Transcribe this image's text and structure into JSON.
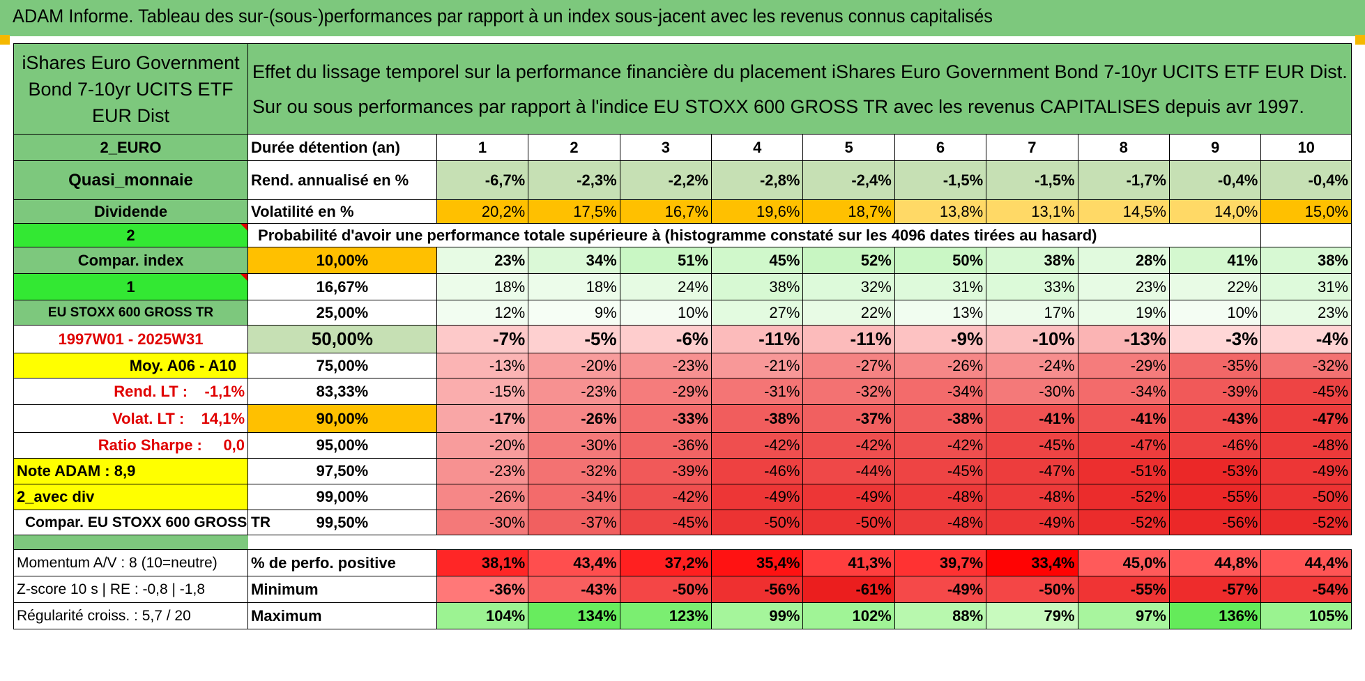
{
  "title": "ADAM Informe. Tableau des sur-(sous-)performances par rapport à un index sous-jacent avec les revenus connus capitalisés",
  "fund_name": "iShares Euro Government Bond 7-10yr UCITS ETF EUR Dist",
  "description_line1": "Effet du lissage temporel sur la performance financière du placement iShares Euro Government Bond 7-10yr UCITS ETF EUR Dist.",
  "description_line2": "Sur ou sous performances par rapport à l'indice EU STOXX 600 GROSS TR avec les revenus CAPITALISES depuis avr 1997.",
  "side": {
    "currency": "2_EURO",
    "category": "Quasi_monnaie",
    "distribution": "Dividende",
    "setting_a": "2",
    "compar_index": "Compar. index",
    "setting_b": "1",
    "index_name": "EU STOXX 600 GROSS TR",
    "period": "1997W01 - 2025W31",
    "moy": "Moy. A06 - A10",
    "rend_lt": "Rend. LT :    -1,1%",
    "volat_lt": "Volat. LT :    14,1%",
    "ratio_sharpe": "Ratio Sharpe :     0,0",
    "note_adam": "Note ADAM : 8,9",
    "avec_div": "2_avec div",
    "compar_full": "Compar. EU STOXX 600 GROSS TR",
    "momentum": "Momentum A/V : 8 (10=neutre)",
    "zscore": "Z-score 10 s | RE : -0,8 | -1,8",
    "regularite": "Régularité croiss. : 5,7 / 20"
  },
  "header": {
    "duration_label": "Durée détention (an)",
    "years": [
      "1",
      "2",
      "3",
      "4",
      "5",
      "6",
      "7",
      "8",
      "9",
      "10"
    ]
  },
  "rend": {
    "label": "Rend. annualisé en %",
    "values": [
      "-6,7%",
      "-2,3%",
      "-2,2%",
      "-2,8%",
      "-2,4%",
      "-1,5%",
      "-1,5%",
      "-1,7%",
      "-0,4%",
      "-0,4%"
    ]
  },
  "volat": {
    "label": "Volatilité en %",
    "values": [
      "20,2%",
      "17,5%",
      "16,7%",
      "19,6%",
      "18,7%",
      "13,8%",
      "13,1%",
      "14,5%",
      "14,0%",
      "15,0%"
    ]
  },
  "proba_label": "Probabilité d'avoir une performance totale supérieure à (histogramme constaté sur les 4096 dates tirées au hasard)",
  "quantiles": [
    {
      "level": "10,00%",
      "values": [
        "23%",
        "34%",
        "51%",
        "45%",
        "52%",
        "50%",
        "38%",
        "28%",
        "41%",
        "38%"
      ]
    },
    {
      "level": "16,67%",
      "values": [
        "18%",
        "18%",
        "24%",
        "38%",
        "32%",
        "31%",
        "33%",
        "23%",
        "22%",
        "31%"
      ]
    },
    {
      "level": "25,00%",
      "values": [
        "12%",
        "9%",
        "10%",
        "27%",
        "22%",
        "13%",
        "17%",
        "19%",
        "10%",
        "23%"
      ]
    },
    {
      "level": "50,00%",
      "values": [
        "-7%",
        "-5%",
        "-6%",
        "-11%",
        "-11%",
        "-9%",
        "-10%",
        "-13%",
        "-3%",
        "-4%"
      ]
    },
    {
      "level": "75,00%",
      "values": [
        "-13%",
        "-20%",
        "-23%",
        "-21%",
        "-27%",
        "-26%",
        "-24%",
        "-29%",
        "-35%",
        "-32%"
      ]
    },
    {
      "level": "83,33%",
      "values": [
        "-15%",
        "-23%",
        "-29%",
        "-31%",
        "-32%",
        "-34%",
        "-30%",
        "-34%",
        "-39%",
        "-45%"
      ]
    },
    {
      "level": "90,00%",
      "values": [
        "-17%",
        "-26%",
        "-33%",
        "-38%",
        "-37%",
        "-38%",
        "-41%",
        "-41%",
        "-43%",
        "-47%"
      ]
    },
    {
      "level": "95,00%",
      "values": [
        "-20%",
        "-30%",
        "-36%",
        "-42%",
        "-42%",
        "-42%",
        "-45%",
        "-47%",
        "-46%",
        "-48%"
      ]
    },
    {
      "level": "97,50%",
      "values": [
        "-23%",
        "-32%",
        "-39%",
        "-46%",
        "-44%",
        "-45%",
        "-47%",
        "-51%",
        "-53%",
        "-49%"
      ]
    },
    {
      "level": "99,00%",
      "values": [
        "-26%",
        "-34%",
        "-42%",
        "-49%",
        "-49%",
        "-48%",
        "-48%",
        "-52%",
        "-55%",
        "-50%"
      ]
    },
    {
      "level": "99,50%",
      "values": [
        "-30%",
        "-37%",
        "-45%",
        "-50%",
        "-50%",
        "-48%",
        "-49%",
        "-52%",
        "-56%",
        "-52%"
      ]
    }
  ],
  "perf_pos": {
    "label": "% de perfo. positive",
    "values": [
      "38,1%",
      "43,4%",
      "37,2%",
      "35,4%",
      "41,3%",
      "39,7%",
      "33,4%",
      "45,0%",
      "44,8%",
      "44,4%"
    ]
  },
  "minimum": {
    "label": "Minimum",
    "values": [
      "-36%",
      "-43%",
      "-50%",
      "-56%",
      "-61%",
      "-49%",
      "-50%",
      "-55%",
      "-57%",
      "-54%"
    ]
  },
  "maximum": {
    "label": "Maximum",
    "values": [
      "104%",
      "134%",
      "123%",
      "99%",
      "102%",
      "88%",
      "79%",
      "97%",
      "136%",
      "105%"
    ]
  },
  "colors": {
    "title_green": "#7dc87d",
    "light_green": "#c6e0b4",
    "bright_green": "#33e833",
    "yellow": "#ffff00",
    "orange": "#ffc000",
    "red": "#ff0000"
  }
}
